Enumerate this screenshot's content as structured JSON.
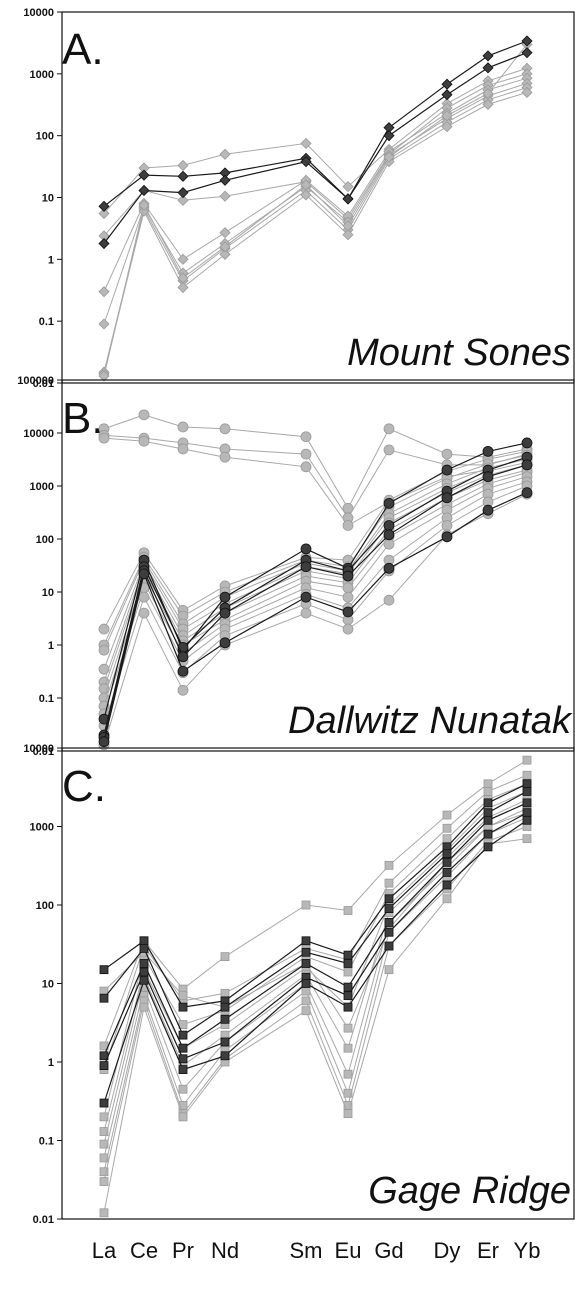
{
  "chart_data": [
    {
      "type": "line",
      "panel_label": "A.",
      "location": "Mount Sones",
      "yscale": "log",
      "ylim": [
        0.01,
        10000
      ],
      "yticks": [
        "0.01",
        "0.1",
        "1",
        "10",
        "100",
        "1000",
        "10000"
      ],
      "x": [
        "La",
        "Ce",
        "Pr",
        "Nd",
        "Sm",
        "Eu",
        "Gd",
        "Dy",
        "Er",
        "Yb"
      ],
      "marker": "diamond",
      "colors": {
        "dark": "#3d3d3d",
        "light": "#b8b8b8",
        "line_dark": "#1a1a1a",
        "line_light": "#a8a8a8"
      },
      "series": [
        {
          "shade": "light",
          "values": [
            5.5,
            30,
            33,
            50,
            75,
            15,
            60,
            330,
            770,
            1230
          ]
        },
        {
          "shade": "light",
          "values": [
            2.4,
            13,
            9,
            10.5,
            18,
            4.5,
            50,
            280,
            650,
            1000
          ]
        },
        {
          "shade": "light",
          "values": [
            0.3,
            8,
            1.0,
            2.7,
            19,
            5,
            55,
            230,
            550,
            850
          ]
        },
        {
          "shade": "light",
          "values": [
            0.09,
            7,
            0.6,
            1.8,
            15,
            4,
            48,
            190,
            440,
            700
          ]
        },
        {
          "shade": "light",
          "values": [
            0.015,
            6.5,
            0.45,
            1.5,
            13,
            3,
            42,
            165,
            380,
            600
          ]
        },
        {
          "shade": "light",
          "values": [
            0.014,
            6,
            0.35,
            1.2,
            11,
            2.5,
            38,
            140,
            320,
            500
          ]
        },
        {
          "shade": "light",
          "values": [
            0.013,
            7.5,
            0.5,
            1.6,
            16,
            3.5,
            45,
            210,
            480,
            3000
          ]
        },
        {
          "shade": "dark",
          "values": [
            7.2,
            23,
            22,
            25,
            43,
            9.5,
            135,
            680,
            1950,
            3400
          ]
        },
        {
          "shade": "dark",
          "values": [
            1.8,
            13,
            12,
            19,
            38,
            9.5,
            100,
            460,
            1250,
            2200
          ]
        }
      ]
    },
    {
      "type": "line",
      "panel_label": "B.",
      "location": "Dallwitz Nunatak",
      "yscale": "log",
      "ylim": [
        0.01,
        100000
      ],
      "yticks": [
        "0.01",
        "0.1",
        "1",
        "10",
        "100",
        "1000",
        "10000",
        "100000"
      ],
      "x": [
        "La",
        "Ce",
        "Pr",
        "Nd",
        "Sm",
        "Eu",
        "Gd",
        "Dy",
        "Er",
        "Yb"
      ],
      "marker": "circle",
      "colors": {
        "dark": "#3d3d3d",
        "light": "#b8b8b8",
        "line_dark": "#1a1a1a",
        "line_light": "#a8a8a8"
      },
      "series": [
        {
          "shade": "light",
          "values": [
            12000,
            22000,
            13000,
            12000,
            8500,
            380,
            12000,
            4000,
            3500,
            5000
          ]
        },
        {
          "shade": "light",
          "values": [
            9000,
            8000,
            6500,
            5000,
            4000,
            250,
            4800,
            2500,
            2500,
            4000
          ]
        },
        {
          "shade": "light",
          "values": [
            8000,
            7000,
            5000,
            3500,
            2300,
            180,
            500,
            1500,
            2000,
            3500
          ]
        },
        {
          "shade": "light",
          "values": [
            2.0,
            55,
            4.5,
            13,
            45,
            40,
            540,
            1900,
            3200,
            4500
          ]
        },
        {
          "shade": "light",
          "values": [
            1.0,
            45,
            3.5,
            10,
            40,
            30,
            400,
            1400,
            2600,
            3800
          ]
        },
        {
          "shade": "light",
          "values": [
            0.8,
            40,
            2.5,
            8,
            35,
            25,
            300,
            1100,
            2200,
            3200
          ]
        },
        {
          "shade": "light",
          "values": [
            0.35,
            35,
            2.0,
            6,
            30,
            22,
            250,
            900,
            1900,
            2800
          ]
        },
        {
          "shade": "light",
          "values": [
            0.2,
            30,
            1.5,
            5,
            25,
            18,
            200,
            750,
            1600,
            2500
          ]
        },
        {
          "shade": "light",
          "values": [
            0.15,
            25,
            1.2,
            4,
            20,
            15,
            150,
            600,
            1300,
            2000
          ]
        },
        {
          "shade": "light",
          "values": [
            0.1,
            20,
            1.0,
            3,
            16,
            12,
            110,
            450,
            1100,
            1800
          ]
        },
        {
          "shade": "light",
          "values": [
            0.07,
            15,
            0.7,
            2.5,
            12,
            8,
            80,
            350,
            900,
            1500
          ]
        },
        {
          "shade": "light",
          "values": [
            0.05,
            12,
            0.5,
            2,
            9,
            5,
            40,
            250,
            700,
            1200
          ]
        },
        {
          "shade": "light",
          "values": [
            0.03,
            8,
            0.3,
            1.5,
            6,
            3,
            25,
            180,
            500,
            1000
          ]
        },
        {
          "shade": "light",
          "values": [
            0.013,
            4,
            0.14,
            1.0,
            4,
            2,
            7,
            120,
            300,
            700
          ]
        },
        {
          "shade": "dark",
          "values": [
            0.04,
            40,
            0.8,
            8,
            65,
            28,
            470,
            2000,
            4500,
            6500
          ]
        },
        {
          "shade": "dark",
          "values": [
            0.02,
            30,
            0.9,
            5,
            40,
            25,
            180,
            800,
            2000,
            3500
          ]
        },
        {
          "shade": "dark",
          "values": [
            0.018,
            25,
            0.6,
            4,
            30,
            20,
            120,
            600,
            1500,
            2500
          ]
        },
        {
          "shade": "dark",
          "values": [
            0.015,
            22,
            0.32,
            1.1,
            8,
            4.2,
            28,
            110,
            350,
            750
          ]
        }
      ]
    },
    {
      "type": "line",
      "panel_label": "C.",
      "location": "Gage Ridge",
      "yscale": "log",
      "ylim": [
        0.01,
        10000
      ],
      "yticks": [
        "0.01",
        "0.1",
        "1",
        "10",
        "100",
        "1000",
        "10000"
      ],
      "x": [
        "La",
        "Ce",
        "Pr",
        "Nd",
        "Sm",
        "Eu",
        "Gd",
        "Dy",
        "Er",
        "Yb"
      ],
      "marker": "square",
      "colors": {
        "dark": "#3d3d3d",
        "light": "#b8b8b8",
        "line_dark": "#1a1a1a",
        "line_light": "#a8a8a8"
      },
      "series": [
        {
          "shade": "light",
          "values": [
            1.6,
            35,
            8.5,
            22,
            100,
            85,
            320,
            1400,
            3500,
            7000
          ]
        },
        {
          "shade": "light",
          "values": [
            0.8,
            30,
            6,
            7.5,
            28,
            20,
            190,
            950,
            2800,
            4500
          ]
        },
        {
          "shade": "light",
          "values": [
            0.2,
            22,
            3,
            4.5,
            22,
            14,
            140,
            700,
            2200,
            3500
          ]
        },
        {
          "shade": "light",
          "values": [
            0.13,
            15,
            1.5,
            3,
            16,
            5,
            100,
            500,
            1700,
            2800
          ]
        },
        {
          "shade": "light",
          "values": [
            0.09,
            12,
            0.9,
            2.2,
            13,
            1.5,
            80,
            400,
            1300,
            2200
          ]
        },
        {
          "shade": "light",
          "values": [
            0.06,
            9,
            0.45,
            1.8,
            10,
            0.7,
            60,
            300,
            1000,
            1700
          ]
        },
        {
          "shade": "light",
          "values": [
            0.04,
            7,
            0.28,
            1.4,
            8,
            0.4,
            45,
            230,
            800,
            1300
          ]
        },
        {
          "shade": "light",
          "values": [
            0.03,
            6,
            0.22,
            1.1,
            6,
            0.28,
            30,
            160,
            650,
            1000
          ]
        },
        {
          "shade": "light",
          "values": [
            0.012,
            5,
            0.2,
            1.0,
            4.5,
            0.22,
            15,
            120,
            600,
            700
          ]
        },
        {
          "shade": "light",
          "values": [
            8,
            25,
            7,
            5,
            18,
            2.7,
            50,
            350,
            1000,
            1500
          ]
        },
        {
          "shade": "dark",
          "values": [
            15,
            35,
            5,
            6,
            35,
            23,
            120,
            550,
            2000,
            3500
          ]
        },
        {
          "shade": "dark",
          "values": [
            6.5,
            28,
            2.2,
            5,
            25,
            18,
            90,
            450,
            1500,
            2800
          ]
        },
        {
          "shade": "dark",
          "values": [
            1.2,
            18,
            1.5,
            3.5,
            18,
            9,
            60,
            350,
            1200,
            2000
          ]
        },
        {
          "shade": "dark",
          "values": [
            0.9,
            14,
            1.1,
            1.8,
            12,
            7,
            45,
            260,
            800,
            1500
          ]
        },
        {
          "shade": "dark",
          "values": [
            0.3,
            11,
            0.8,
            1.2,
            10,
            5,
            30,
            180,
            550,
            1200
          ]
        }
      ]
    }
  ]
}
